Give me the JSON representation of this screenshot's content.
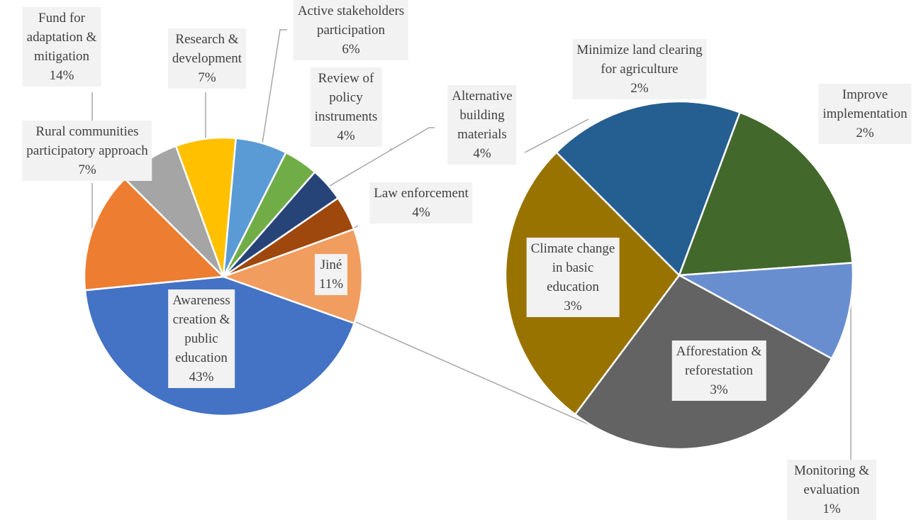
{
  "chart_data": [
    {
      "type": "pie",
      "categories": [
        "Research &\ndevelopment",
        "Active stakeholders\nparticipation",
        "Review of\npolicy\ninstruments",
        "Alternative\nbuilding\nmaterials",
        "Law enforcement",
        "Jiné",
        "Awareness\ncreation &\npublic\neducation",
        "Fund for\nadaptation &\nmitigation",
        "Rural communities\nparticipatory approach"
      ],
      "values": [
        7,
        6,
        4,
        4,
        4,
        11,
        43,
        14,
        7
      ],
      "value_labels": [
        "7%",
        "6%",
        "4%",
        "4%",
        "4%",
        "11%",
        "43%",
        "14%",
        "7%"
      ],
      "colors": [
        "#ffc000",
        "#5b9bd5",
        "#70ad47",
        "#264478",
        "#9e480e",
        "#f19d5f",
        "#4472c4",
        "#ed7d31",
        "#a5a5a5"
      ]
    },
    {
      "type": "pie",
      "categories": [
        "Minimize land clearing\nfor agriculture",
        "Improve\nimplementation",
        "Monitoring & evaluation",
        "Afforestation &\nreforestation",
        "Climate change\nin basic\neducation"
      ],
      "values": [
        2,
        2,
        1,
        3,
        3
      ],
      "value_labels": [
        "2%",
        "2%",
        "1%",
        "3%",
        "3%"
      ],
      "colors": [
        "#255e91",
        "#43682b",
        "#698ed0",
        "#636363",
        "#997300"
      ]
    }
  ]
}
